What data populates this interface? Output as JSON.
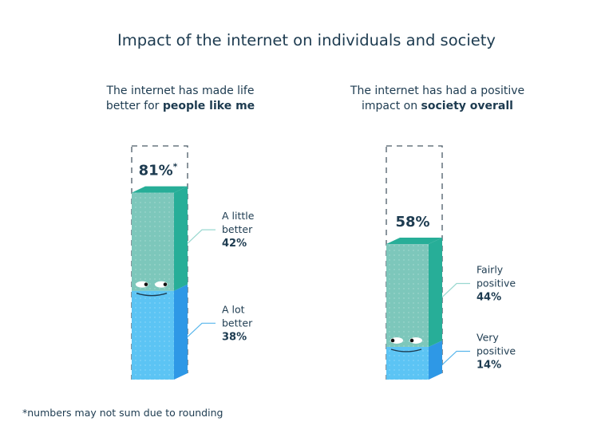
{
  "chart_data": {
    "type": "bar",
    "title": "Impact of the internet on individuals and society",
    "footnote": "*numbers may not sum due to rounding",
    "ylim": [
      0,
      100
    ],
    "panels": [
      {
        "subtitle_line1": "The internet has made life",
        "subtitle_line2_regular": "better for ",
        "subtitle_line2_bold": "people like me",
        "total_label": "81%",
        "total_marker": "*",
        "total": 81,
        "segments": [
          {
            "name_line1": "A lot",
            "name_line2": "better",
            "value": 38,
            "value_label": "38%",
            "color": "#5cc4f4",
            "side_color": "#2e98e6",
            "leader_color": "#58b6ec"
          },
          {
            "name_line1": "A little",
            "name_line2": "better",
            "value": 42,
            "value_label": "42%",
            "color": "#7dc7bb",
            "side_color": "#27ae98",
            "leader_color": "#9ad8d0"
          }
        ]
      },
      {
        "subtitle_line1": "The internet has had a positive",
        "subtitle_line2_regular": "impact on ",
        "subtitle_line2_bold": "society overall",
        "total_label": "58%",
        "total_marker": "",
        "total": 58,
        "segments": [
          {
            "name_line1": "Very",
            "name_line2": "positive",
            "value": 14,
            "value_label": "14%",
            "color": "#5cc4f4",
            "side_color": "#2e98e6",
            "leader_color": "#58b6ec"
          },
          {
            "name_line1": "Fairly",
            "name_line2": "positive",
            "value": 44,
            "value_label": "44%",
            "color": "#7dc7bb",
            "side_color": "#27ae98",
            "leader_color": "#9ad8d0"
          }
        ]
      }
    ]
  }
}
